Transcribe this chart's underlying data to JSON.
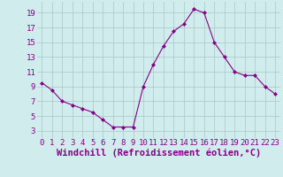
{
  "x": [
    0,
    1,
    2,
    3,
    4,
    5,
    6,
    7,
    8,
    9,
    10,
    11,
    12,
    13,
    14,
    15,
    16,
    17,
    18,
    19,
    20,
    21,
    22,
    23
  ],
  "y": [
    9.5,
    8.5,
    7.0,
    6.5,
    6.0,
    5.5,
    4.5,
    3.5,
    3.5,
    3.5,
    9.0,
    12.0,
    14.5,
    16.5,
    17.5,
    19.5,
    19.0,
    15.0,
    13.0,
    11.0,
    10.5,
    10.5,
    9.0,
    8.0
  ],
  "line_color": "#880088",
  "marker": "D",
  "marker_size": 2.0,
  "bg_color": "#d0ecec",
  "grid_color": "#a8c8c8",
  "xlabel": "Windchill (Refroidissement éolien,°C)",
  "xlabel_color": "#880088",
  "tick_color": "#880088",
  "xlim": [
    -0.5,
    23.5
  ],
  "ylim": [
    2.0,
    20.5
  ],
  "yticks": [
    3,
    5,
    7,
    9,
    11,
    13,
    15,
    17,
    19
  ],
  "xticks": [
    0,
    1,
    2,
    3,
    4,
    5,
    6,
    7,
    8,
    9,
    10,
    11,
    12,
    13,
    14,
    15,
    16,
    17,
    18,
    19,
    20,
    21,
    22,
    23
  ],
  "tick_fontsize": 6.5,
  "xlabel_fontsize": 7.5,
  "linewidth": 0.8
}
